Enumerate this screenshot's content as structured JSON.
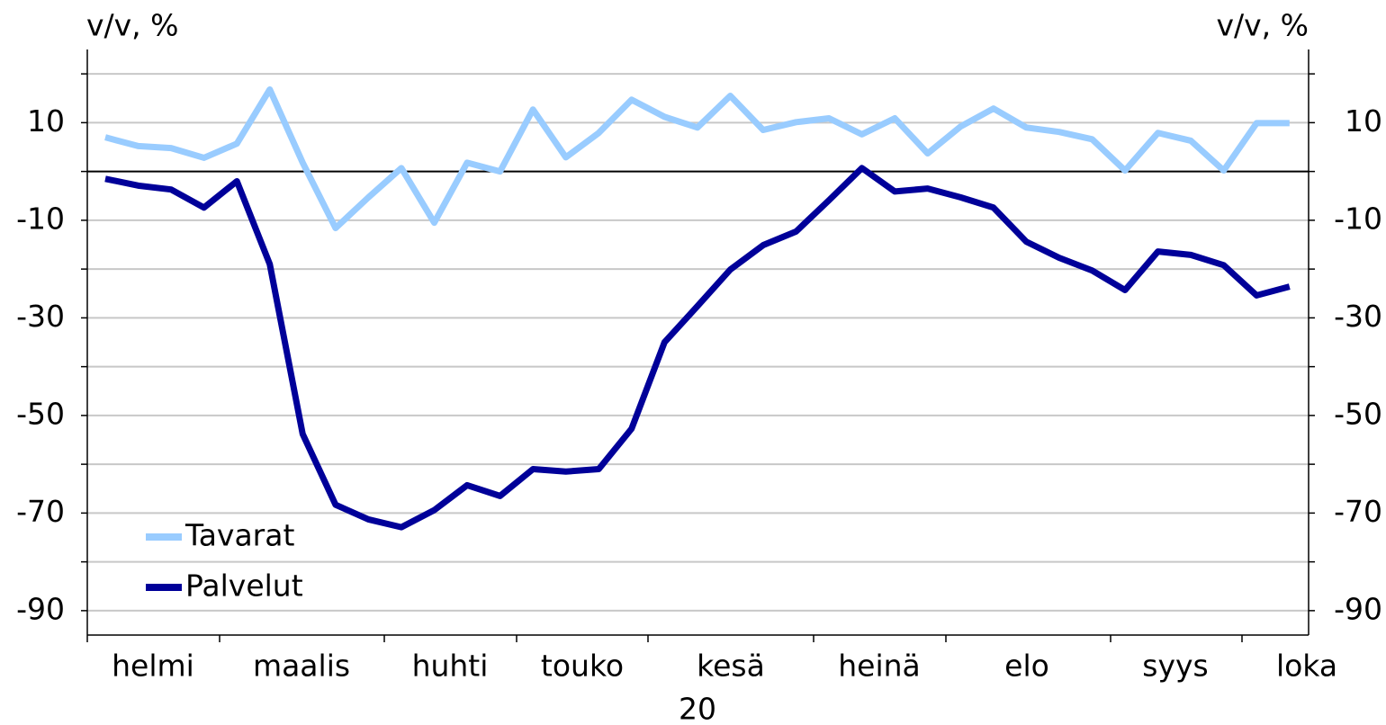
{
  "chart_data": {
    "type": "line",
    "y_label": "v/v, %",
    "y2_label": "v/v, %",
    "x_labels": [
      "helmi",
      "maalis",
      "huhti",
      "touko",
      "kesä",
      "heinä",
      "elo",
      "syys",
      "loka"
    ],
    "x_group_label": "20",
    "ylim": [
      -95,
      25
    ],
    "yticks": [
      10,
      -10,
      -30,
      -50,
      -70,
      -90
    ],
    "yticks_minor": [
      20,
      0,
      -20,
      -40,
      -60,
      -80
    ],
    "y2lim": [
      -95,
      25
    ],
    "y2ticks": [
      10,
      -10,
      -30,
      -50,
      -70,
      -90
    ],
    "grid": true,
    "legend": "lower left",
    "series": [
      {
        "name": "Tavarat",
        "color": "#99ccff",
        "values": [
          7,
          5.2,
          4.8,
          2.8,
          5.7,
          16.8,
          1.8,
          -11.6,
          -5.3,
          0.7,
          -10.5,
          1.8,
          0,
          12.7,
          2.9,
          7.9,
          14.7,
          11.2,
          9,
          15.5,
          8.5,
          10.1,
          10.9,
          7.6,
          10.9,
          3.7,
          9.2,
          12.9,
          9,
          8.1,
          6.6,
          0.2,
          7.9,
          6.3,
          0.2,
          9.9,
          9.9
        ]
      },
      {
        "name": "Palvelut",
        "color": "#000099",
        "values": [
          -1.5,
          -2.9,
          -3.7,
          -7.4,
          -2,
          -19,
          -53.8,
          -68.3,
          -71.3,
          -72.9,
          -69.4,
          -64.3,
          -66.5,
          -61,
          -61.5,
          -61,
          -52.7,
          -35,
          -27.6,
          -20.1,
          -15.1,
          -12.3,
          -5.9,
          0.7,
          -4.1,
          -3.5,
          -5.3,
          -7.4,
          -14.4,
          -17.7,
          -20.3,
          -24.3,
          -16.4,
          -17.1,
          -19.2,
          -25.4,
          -23.6
        ]
      }
    ]
  }
}
